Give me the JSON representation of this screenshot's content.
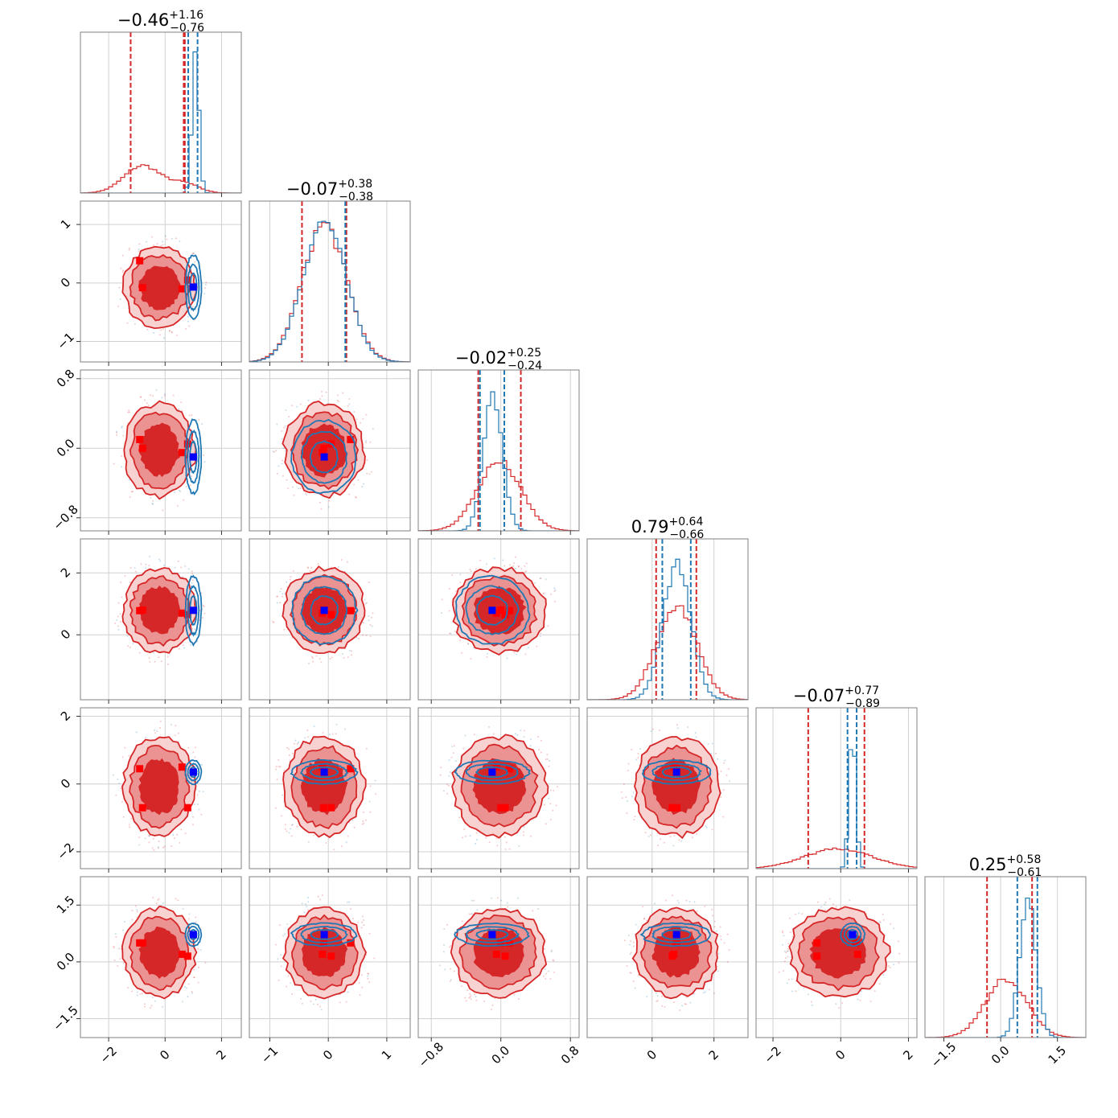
{
  "figure": {
    "type": "corner-plot"
  },
  "colors": {
    "red": "#d62728",
    "red_mid": "#eb9393",
    "red_light": "#f8d1d1",
    "blue": "#1f77b4",
    "marker_blue": "#0000ff",
    "marker_red": "#ff0000",
    "grid": "#d0d0d0",
    "frame": "#808080"
  },
  "chart_data": {
    "type": "corner",
    "grid": true,
    "params": [
      {
        "title_median": "−0.46",
        "title_plus": "+1.16",
        "title_minus": "−0.76",
        "range": [
          -3,
          2.7
        ],
        "ticks": [
          -2,
          0,
          2
        ],
        "tick_labels": [
          "−2",
          "0",
          "2"
        ],
        "hist_red": {
          "mu": -0.8,
          "sd": 0.65,
          "peak": 0.18,
          "mu2": 0.7,
          "sd2": 0.5,
          "w2": 0.06
        },
        "hist_blue": {
          "mu": 1.08,
          "sd": 0.12,
          "peak": 0.92
        },
        "quantiles_red": [
          -1.22,
          0.66,
          0.7
        ],
        "quantiles_blue": [
          0.82,
          1.15
        ]
      },
      {
        "title_median": "−0.07",
        "title_plus": "+0.38",
        "title_minus": "−0.38",
        "range": [
          -1.35,
          1.4
        ],
        "ticks": [
          -1,
          0,
          1
        ],
        "tick_labels": [
          "−1",
          "0",
          "1"
        ],
        "hist_red": {
          "mu": -0.07,
          "sd": 0.38,
          "peak": 0.9
        },
        "hist_blue": {
          "mu": -0.07,
          "sd": 0.37,
          "peak": 0.92
        },
        "quantiles_red": [
          -0.45,
          0.31
        ],
        "quantiles_blue": [
          0.29
        ]
      },
      {
        "title_median": "−0.02",
        "title_plus": "+0.25",
        "title_minus": "−0.24",
        "range": [
          -0.95,
          0.9
        ],
        "ticks": [
          -0.8,
          0.0,
          0.8
        ],
        "tick_labels": [
          "−0.8",
          "0.0",
          "0.8"
        ],
        "hist_red": {
          "mu": -0.02,
          "sd": 0.25,
          "peak": 0.45
        },
        "hist_blue": {
          "mu": -0.09,
          "sd": 0.11,
          "peak": 0.88
        },
        "quantiles_red": [
          -0.26,
          0.23
        ],
        "quantiles_blue": [
          -0.24,
          0.04
        ]
      },
      {
        "title_median": "0.79",
        "title_plus": "+0.64",
        "title_minus": "−0.66",
        "range": [
          -2.1,
          3.1
        ],
        "ticks": [
          0,
          2
        ],
        "tick_labels": [
          "0",
          "2"
        ],
        "hist_red": {
          "mu": 0.79,
          "sd": 0.65,
          "peak": 0.62
        },
        "hist_blue": {
          "mu": 0.8,
          "sd": 0.45,
          "peak": 0.88
        },
        "quantiles_red": [
          0.13,
          1.43
        ],
        "quantiles_blue": [
          0.33,
          1.25
        ]
      },
      {
        "title_median": "−0.07",
        "title_plus": "+0.77",
        "title_minus": "−0.89",
        "range": [
          -2.5,
          2.25
        ],
        "ticks": [
          -2,
          0,
          2
        ],
        "tick_labels": [
          "−2",
          "0",
          "2"
        ],
        "hist_red": {
          "mu": -0.07,
          "sd": 1.0,
          "peak": 0.13
        },
        "hist_blue": {
          "mu": 0.35,
          "sd": 0.1,
          "peak": 0.9
        },
        "quantiles_red": [
          -0.96,
          0.7
        ],
        "quantiles_blue": [
          0.2,
          0.47
        ]
      },
      {
        "title_median": "0.25",
        "title_plus": "+0.58",
        "title_minus": "−0.61",
        "range": [
          -2.0,
          2.25
        ],
        "ticks": [
          -1.5,
          0.0,
          1.5
        ],
        "tick_labels": [
          "−1.5",
          "0.0",
          "1.5"
        ],
        "hist_red": {
          "mu": 0.15,
          "sd": 0.55,
          "peak": 0.38
        },
        "hist_blue": {
          "mu": 0.72,
          "sd": 0.22,
          "peak": 0.88
        },
        "quantiles_red": [
          -0.36,
          0.83
        ],
        "quantiles_blue": [
          0.44,
          0.97
        ]
      }
    ],
    "blue_point": [
      1.0,
      -0.07,
      -0.1,
      0.79,
      0.35,
      0.72
    ],
    "red_markers": [
      [
        -0.9,
        0.38,
        0.1,
        0.78,
        0.45,
        0.5
      ],
      [
        0.6,
        -0.1,
        -0.05,
        0.7,
        0.5,
        0.2
      ],
      [
        -0.8,
        -0.08,
        0.0,
        0.8,
        -0.7,
        0.5
      ],
      [
        0.8,
        0.05,
        0.05,
        0.65,
        -0.7,
        0.15
      ]
    ],
    "red_center": [
      -0.2,
      -0.07,
      -0.02,
      0.79,
      -0.07,
      0.25
    ],
    "red_spread": [
      1.3,
      0.7,
      0.55,
      1.4,
      1.5,
      1.2
    ],
    "blue_spread": [
      0.28,
      0.55,
      0.42,
      1.1,
      0.35,
      0.3
    ]
  }
}
